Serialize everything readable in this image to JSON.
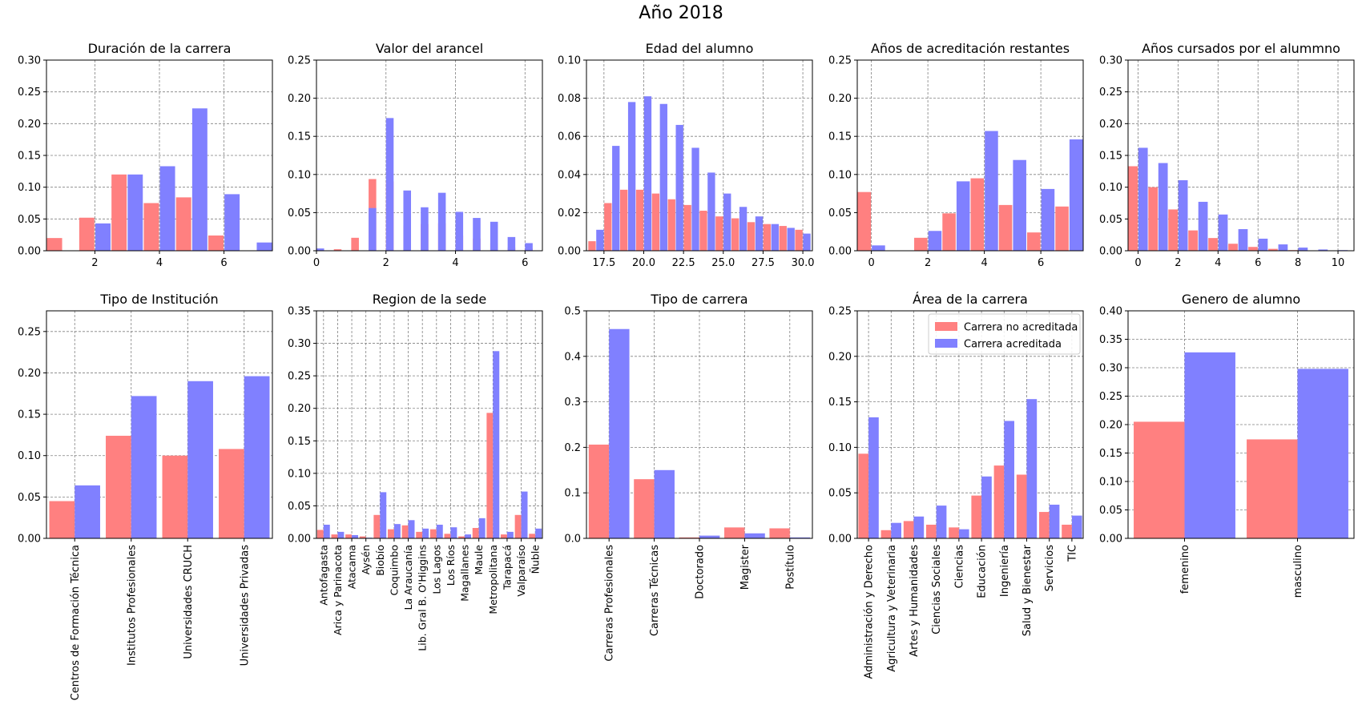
{
  "figure_title": "Año 2018",
  "colors": {
    "no_acreditada": "#ff8080",
    "acreditada": "#8080ff",
    "grid": "#808080"
  },
  "legend": {
    "location": "upper right",
    "panel": "Área de la carrera",
    "entries": [
      "Carrera no acreditada",
      "Carrera acreditada"
    ]
  },
  "chart_data": [
    {
      "type": "bar",
      "title": "Duración de la carrera",
      "numeric": true,
      "xlim": [
        0.5,
        7.5
      ],
      "ylim": [
        0,
        0.3
      ],
      "xticks": [
        2,
        4,
        6
      ],
      "xtick_labels": [
        "2",
        "4",
        "6"
      ],
      "yticks": [
        0,
        0.05,
        0.1,
        0.15,
        0.2,
        0.25,
        0.3
      ],
      "ytick_labels": [
        "0.00",
        "0.05",
        "0.10",
        "0.15",
        "0.20",
        "0.25",
        "0.30"
      ],
      "bar_width": 0.47,
      "series": [
        {
          "name": "Carrera no acreditada",
          "x": [
            0.75,
            1.75,
            2.75,
            3.75,
            4.75,
            5.75,
            6.75
          ],
          "values": [
            0.02,
            0.052,
            0.12,
            0.075,
            0.084,
            0.024,
            0.0
          ]
        },
        {
          "name": "Carrera acreditada",
          "x": [
            1.25,
            2.25,
            3.25,
            4.25,
            5.25,
            6.25,
            7.25
          ],
          "values": [
            0.0,
            0.043,
            0.12,
            0.133,
            0.224,
            0.089,
            0.013
          ]
        }
      ]
    },
    {
      "type": "bar",
      "title": "Valor del arancel",
      "numeric": true,
      "xlim": [
        0,
        6.5
      ],
      "ylim": [
        0,
        0.25
      ],
      "xticks": [
        0,
        2,
        4,
        6
      ],
      "xtick_labels": [
        "0",
        "2",
        "4",
        "6"
      ],
      "yticks": [
        0,
        0.05,
        0.1,
        0.15,
        0.2,
        0.25
      ],
      "ytick_labels": [
        "0.00",
        "0.05",
        "0.10",
        "0.15",
        "0.20",
        "0.25"
      ],
      "bar_width": 0.22,
      "series": [
        {
          "name": "Carrera no acreditada",
          "x": [
            0.11,
            0.61,
            1.11,
            1.61,
            2.11,
            2.61,
            3.11,
            3.61,
            4.11,
            4.61,
            5.11,
            5.61,
            6.11,
            6.61
          ],
          "values": [
            0.0,
            0.002,
            0.017,
            0.094,
            0.091,
            0.033,
            0.035,
            0.036,
            0.02,
            0.016,
            0.01,
            0.004,
            0.003,
            0.002
          ]
        },
        {
          "name": "Carrera acreditada",
          "x": [
            0.11,
            0.61,
            1.11,
            1.61,
            2.11,
            2.61,
            3.11,
            3.61,
            4.11,
            4.61,
            5.11,
            5.61,
            6.11
          ],
          "values": [
            0.003,
            0.0,
            0.0,
            0.056,
            0.174,
            0.079,
            0.057,
            0.076,
            0.051,
            0.043,
            0.038,
            0.018,
            0.01
          ]
        }
      ]
    },
    {
      "type": "bar",
      "title": "Edad del alumno",
      "numeric": true,
      "xlim": [
        16.4,
        30.6
      ],
      "ylim": [
        0,
        0.1
      ],
      "xticks": [
        17.5,
        20.0,
        22.5,
        25.0,
        27.5,
        30.0
      ],
      "xtick_labels": [
        "17.5",
        "20.0",
        "22.5",
        "25.0",
        "27.5",
        "30.0"
      ],
      "yticks": [
        0,
        0.02,
        0.04,
        0.06,
        0.08,
        0.1
      ],
      "ytick_labels": [
        "0.00",
        "0.02",
        "0.04",
        "0.06",
        "0.08",
        "0.10"
      ],
      "bar_width": 0.47,
      "series": [
        {
          "name": "Carrera no acreditada",
          "x": [
            16.75,
            17.75,
            18.75,
            19.75,
            20.75,
            21.75,
            22.75,
            23.75,
            24.75,
            25.75,
            26.75,
            27.75,
            28.75,
            29.75
          ],
          "values": [
            0.005,
            0.025,
            0.032,
            0.032,
            0.03,
            0.027,
            0.024,
            0.021,
            0.018,
            0.017,
            0.015,
            0.014,
            0.013,
            0.011
          ]
        },
        {
          "name": "Carrera acreditada",
          "x": [
            17.25,
            18.25,
            19.25,
            20.25,
            21.25,
            22.25,
            23.25,
            24.25,
            25.25,
            26.25,
            27.25,
            28.25,
            29.25,
            30.25
          ],
          "values": [
            0.011,
            0.055,
            0.078,
            0.081,
            0.077,
            0.066,
            0.054,
            0.041,
            0.03,
            0.023,
            0.018,
            0.014,
            0.012,
            0.009
          ]
        }
      ]
    },
    {
      "type": "bar",
      "title": "Años de acreditación restantes",
      "numeric": true,
      "xlim": [
        -0.5,
        7.5
      ],
      "ylim": [
        0,
        0.25
      ],
      "xticks": [
        0,
        2,
        4,
        6
      ],
      "xtick_labels": [
        "0",
        "2",
        "4",
        "6"
      ],
      "yticks": [
        0,
        0.05,
        0.1,
        0.15,
        0.2,
        0.25
      ],
      "ytick_labels": [
        "0.00",
        "0.05",
        "0.10",
        "0.15",
        "0.20",
        "0.25"
      ],
      "bar_width": 0.47,
      "series": [
        {
          "name": "Carrera no acreditada",
          "x": [
            -0.25,
            1.75,
            2.75,
            3.75,
            4.75,
            5.75,
            6.75
          ],
          "values": [
            0.077,
            0.017,
            0.049,
            0.095,
            0.06,
            0.024,
            0.058
          ]
        },
        {
          "name": "Carrera acreditada",
          "x": [
            0.25,
            2.25,
            3.25,
            4.25,
            5.25,
            6.25,
            7.25
          ],
          "values": [
            0.007,
            0.026,
            0.091,
            0.157,
            0.119,
            0.081,
            0.146
          ]
        }
      ]
    },
    {
      "type": "bar",
      "title": "Años cursados por el alummno",
      "numeric": true,
      "xlim": [
        -0.5,
        10.8
      ],
      "ylim": [
        0,
        0.3
      ],
      "xticks": [
        0,
        2,
        4,
        6,
        8,
        10
      ],
      "xtick_labels": [
        "0",
        "2",
        "4",
        "6",
        "8",
        "10"
      ],
      "yticks": [
        0,
        0.05,
        0.1,
        0.15,
        0.2,
        0.25,
        0.3
      ],
      "ytick_labels": [
        "0.00",
        "0.05",
        "0.10",
        "0.15",
        "0.20",
        "0.25",
        "0.30"
      ],
      "bar_width": 0.47,
      "series": [
        {
          "name": "Carrera no acreditada",
          "x": [
            -0.25,
            0.75,
            1.75,
            2.75,
            3.75,
            4.75,
            5.75,
            6.75,
            7.75,
            8.75,
            9.75
          ],
          "values": [
            0.133,
            0.1,
            0.065,
            0.032,
            0.02,
            0.011,
            0.006,
            0.003,
            0.001,
            0.0,
            0.0
          ]
        },
        {
          "name": "Carrera acreditada",
          "x": [
            0.25,
            1.25,
            2.25,
            3.25,
            4.25,
            5.25,
            6.25,
            7.25,
            8.25,
            9.25,
            10.25
          ],
          "values": [
            0.162,
            0.138,
            0.111,
            0.077,
            0.057,
            0.034,
            0.019,
            0.01,
            0.005,
            0.002,
            0.001
          ]
        }
      ]
    },
    {
      "type": "bar",
      "title": "Tipo de Institución",
      "numeric": false,
      "categories": [
        "Centros de Formación Técnica",
        "Institutos Profesionales",
        "Universidades CRUCH",
        "Universidades Privadas"
      ],
      "ylim": [
        0,
        0.275
      ],
      "yticks": [
        0,
        0.05,
        0.1,
        0.15,
        0.2,
        0.25
      ],
      "ytick_labels": [
        "0.00",
        "0.05",
        "0.10",
        "0.15",
        "0.20",
        "0.25"
      ],
      "series": [
        {
          "name": "Carrera no acreditada",
          "values": [
            0.045,
            0.124,
            0.1,
            0.108
          ]
        },
        {
          "name": "Carrera acreditada",
          "values": [
            0.064,
            0.172,
            0.19,
            0.196
          ]
        }
      ]
    },
    {
      "type": "bar",
      "title": "Region de la sede",
      "numeric": false,
      "categories": [
        "Antofagasta",
        "Arica y Parinacota",
        "Atacama",
        "Aysén",
        "Biobío",
        "Coquimbo",
        "La Araucanía",
        "Lib. Gral B. O'Higgins",
        "Los Lagos",
        "Los Ríos",
        "Magallanes",
        "Maule",
        "Metropolitana",
        "Tarapacá",
        "Valparaíso",
        "Ñuble"
      ],
      "ylim": [
        0,
        0.35
      ],
      "yticks": [
        0,
        0.05,
        0.1,
        0.15,
        0.2,
        0.25,
        0.3,
        0.35
      ],
      "ytick_labels": [
        "0.00",
        "0.05",
        "0.10",
        "0.15",
        "0.20",
        "0.25",
        "0.30",
        "0.35"
      ],
      "series": [
        {
          "name": "Carrera no acreditada",
          "values": [
            0.013,
            0.006,
            0.006,
            0.003,
            0.036,
            0.014,
            0.02,
            0.01,
            0.014,
            0.007,
            0.003,
            0.016,
            0.193,
            0.006,
            0.036,
            0.007
          ]
        },
        {
          "name": "Carrera acreditada",
          "values": [
            0.021,
            0.01,
            0.005,
            0.001,
            0.071,
            0.022,
            0.028,
            0.015,
            0.021,
            0.017,
            0.006,
            0.031,
            0.288,
            0.01,
            0.072,
            0.015
          ]
        }
      ]
    },
    {
      "type": "bar",
      "title": "Tipo de carrera",
      "numeric": false,
      "categories": [
        "Carreras Profesionales",
        "Carreras Técnicas",
        "Doctorado",
        "Magister",
        "Postítulo"
      ],
      "ylim": [
        0,
        0.5
      ],
      "yticks": [
        0,
        0.1,
        0.2,
        0.3,
        0.4,
        0.5
      ],
      "ytick_labels": [
        "0.0",
        "0.1",
        "0.2",
        "0.3",
        "0.4",
        "0.5"
      ],
      "series": [
        {
          "name": "Carrera no acreditada",
          "values": [
            0.206,
            0.13,
            0.002,
            0.024,
            0.022
          ]
        },
        {
          "name": "Carrera acreditada",
          "values": [
            0.46,
            0.15,
            0.006,
            0.011,
            0.002
          ]
        }
      ]
    },
    {
      "type": "bar",
      "title": "Área de la carrera",
      "numeric": false,
      "categories": [
        "Administración y Derecho",
        "Agricultura y Veterinaria",
        "Artes y Humanidades",
        "Ciencias Sociales",
        "Ciencias",
        "Educación",
        "Ingeniería",
        "Salud y Bienestar",
        "Servicios",
        "TIC"
      ],
      "ylim": [
        0,
        0.25
      ],
      "yticks": [
        0,
        0.05,
        0.1,
        0.15,
        0.2,
        0.25
      ],
      "ytick_labels": [
        "0.00",
        "0.05",
        "0.10",
        "0.15",
        "0.20",
        "0.25"
      ],
      "series": [
        {
          "name": "Carrera no acreditada",
          "values": [
            0.093,
            0.009,
            0.019,
            0.015,
            0.012,
            0.047,
            0.08,
            0.07,
            0.029,
            0.015
          ]
        },
        {
          "name": "Carrera acreditada",
          "values": [
            0.133,
            0.017,
            0.024,
            0.036,
            0.01,
            0.068,
            0.129,
            0.153,
            0.037,
            0.025
          ]
        }
      ]
    },
    {
      "type": "bar",
      "title": "Genero de alumno",
      "numeric": false,
      "categories": [
        "femenino",
        "masculino"
      ],
      "ylim": [
        0,
        0.4
      ],
      "yticks": [
        0,
        0.05,
        0.1,
        0.15,
        0.2,
        0.25,
        0.3,
        0.35,
        0.4
      ],
      "ytick_labels": [
        "0.00",
        "0.05",
        "0.10",
        "0.15",
        "0.20",
        "0.25",
        "0.30",
        "0.35",
        "0.40"
      ],
      "series": [
        {
          "name": "Carrera no acreditada",
          "values": [
            0.205,
            0.174
          ]
        },
        {
          "name": "Carrera acreditada",
          "values": [
            0.327,
            0.298
          ]
        }
      ]
    }
  ]
}
